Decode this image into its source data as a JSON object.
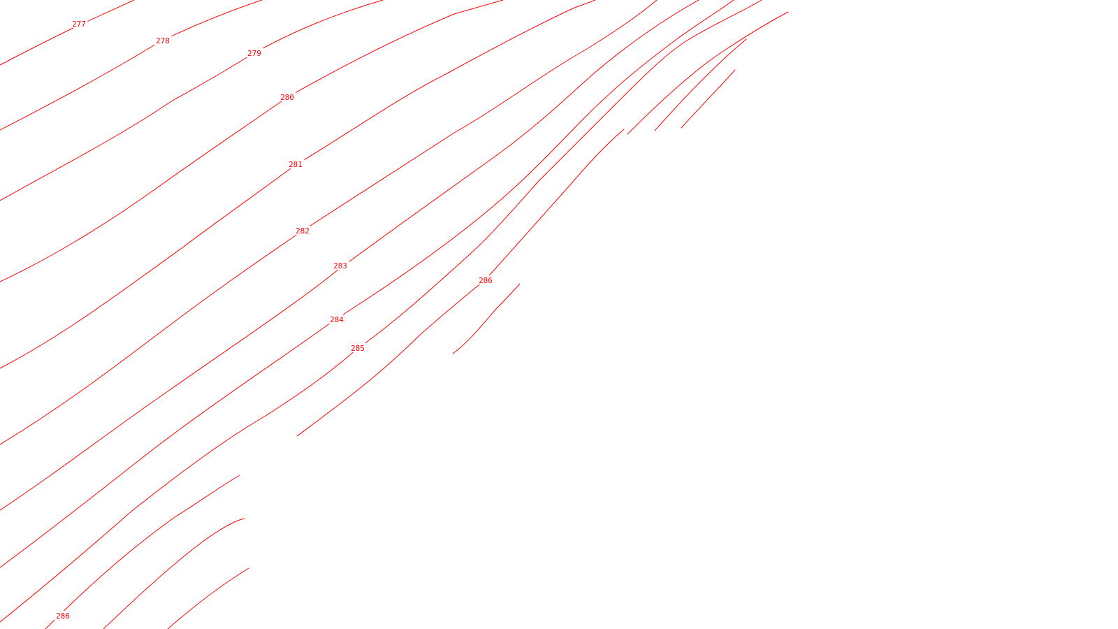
{
  "map": {
    "contour_color": "#ff0000",
    "background": "#ffffff",
    "labels": [
      {
        "text": "277"
      },
      {
        "text": "278"
      },
      {
        "text": "279"
      },
      {
        "text": "280"
      },
      {
        "text": "281"
      },
      {
        "text": "282"
      },
      {
        "text": "283"
      },
      {
        "text": "284"
      },
      {
        "text": "285"
      },
      {
        "text": "286"
      },
      {
        "text": "286"
      }
    ]
  }
}
